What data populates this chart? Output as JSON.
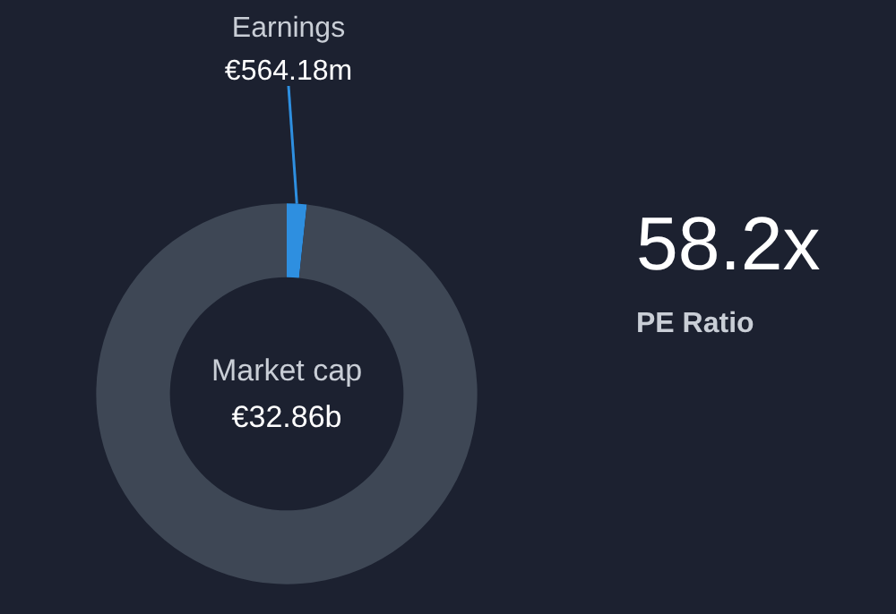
{
  "chart_data": {
    "type": "donut",
    "categories": [
      "Earnings",
      "Market cap"
    ],
    "values": [
      564180000,
      32860000000
    ],
    "value_labels": [
      "€564.18m",
      "€32.86b"
    ],
    "colors": [
      "#2e8fe0",
      "#3e4755"
    ],
    "legend": false,
    "annotations": [
      "58.2x",
      "PE Ratio"
    ]
  }
}
